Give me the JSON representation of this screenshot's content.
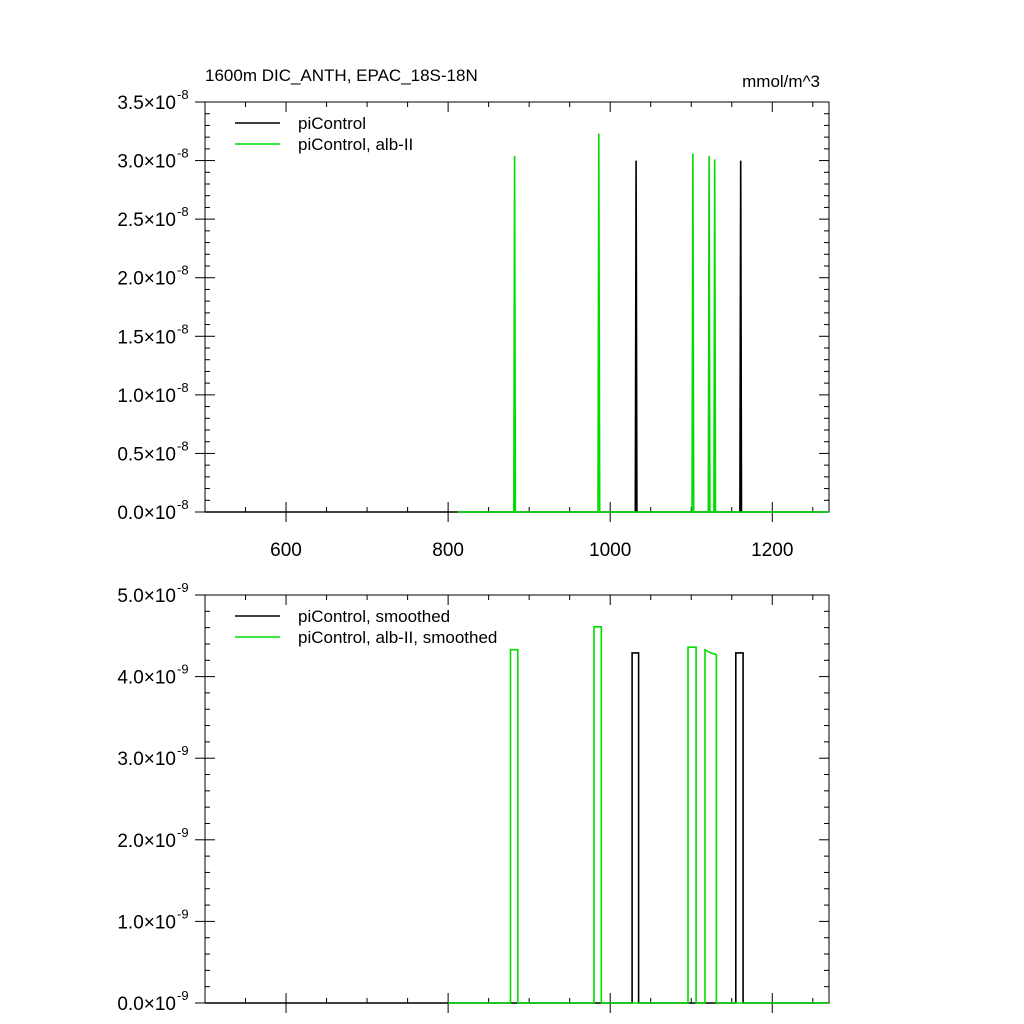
{
  "header": {
    "title": "1600m DIC_ANTH, EPAC_18S-18N",
    "units": "mmol/m^3"
  },
  "colors": {
    "piControl": "#000000",
    "alb": "#00dd00"
  },
  "chart_data": [
    {
      "type": "line",
      "title": "1600m DIC_ANTH, EPAC_18S-18N",
      "units": "mmol/m^3",
      "xlim": [
        500,
        1270
      ],
      "ylim": [
        0,
        3.5e-08
      ],
      "xticks": [
        600,
        800,
        1000,
        1200
      ],
      "xtick_labels": [
        "600",
        "800",
        "1000",
        "1200"
      ],
      "yticks": [
        0,
        5e-09,
        1e-08,
        1.5e-08,
        2e-08,
        2.5e-08,
        3e-08,
        3.5e-08
      ],
      "ytick_labels": [
        {
          "mant": "0.0×10",
          "exp": "-8"
        },
        {
          "mant": "0.5×10",
          "exp": "-8"
        },
        {
          "mant": "1.0×10",
          "exp": "-8"
        },
        {
          "mant": "1.5×10",
          "exp": "-8"
        },
        {
          "mant": "2.0×10",
          "exp": "-8"
        },
        {
          "mant": "2.5×10",
          "exp": "-8"
        },
        {
          "mant": "3.0×10",
          "exp": "-8"
        },
        {
          "mant": "3.5×10",
          "exp": "-8"
        }
      ],
      "legend": "top-left",
      "series": [
        {
          "name": "piControl",
          "color": "#000000",
          "x": [
            500,
            1031,
            1032,
            1033,
            1160,
            1161,
            1162,
            1270
          ],
          "y": [
            0,
            0,
            3e-08,
            0,
            0,
            3e-08,
            0,
            0
          ]
        },
        {
          "name": "piControl, alb-II",
          "color": "#00dd00",
          "x": [
            812,
            881,
            882,
            883,
            985,
            986,
            987,
            1101,
            1102,
            1103,
            1121,
            1122,
            1123,
            1128,
            1129,
            1130,
            1270
          ],
          "y": [
            0,
            0,
            3.04e-08,
            0,
            0,
            3.23e-08,
            0,
            0,
            3.06e-08,
            0,
            0,
            3.04e-08,
            0,
            0,
            3.01e-08,
            0,
            0
          ]
        }
      ]
    },
    {
      "type": "line",
      "xlim": [
        500,
        1270
      ],
      "ylim": [
        0,
        5e-09
      ],
      "xticks": [
        600,
        800,
        1000,
        1200
      ],
      "xtick_labels": [],
      "yticks": [
        0,
        1e-09,
        2e-09,
        3e-09,
        4e-09,
        5e-09
      ],
      "ytick_labels": [
        {
          "mant": "0.0×10",
          "exp": "-9"
        },
        {
          "mant": "1.0×10",
          "exp": "-9"
        },
        {
          "mant": "2.0×10",
          "exp": "-9"
        },
        {
          "mant": "3.0×10",
          "exp": "-9"
        },
        {
          "mant": "4.0×10",
          "exp": "-9"
        },
        {
          "mant": "5.0×10",
          "exp": "-9"
        }
      ],
      "legend": "top-left",
      "series": [
        {
          "name": "piControl, smoothed",
          "color": "#000000",
          "x": [
            500,
            1027,
            1027,
            1035,
            1035,
            1155,
            1155,
            1164,
            1164,
            1270
          ],
          "y": [
            0,
            0,
            4.29e-09,
            4.29e-09,
            0,
            0,
            4.29e-09,
            4.29e-09,
            0,
            0
          ]
        },
        {
          "name": "piControl, alb-II, smoothed",
          "color": "#00dd00",
          "x": [
            800,
            877,
            877,
            886,
            886,
            980,
            980,
            989,
            989,
            1096,
            1096,
            1106,
            1106,
            1117,
            1117,
            1124,
            1124,
            1131,
            1131,
            1270
          ],
          "y": [
            0,
            0,
            4.33e-09,
            4.33e-09,
            0,
            0,
            4.61e-09,
            4.61e-09,
            0,
            0,
            4.36e-09,
            4.36e-09,
            0,
            0,
            4.33e-09,
            4.29e-09,
            4.29e-09,
            4.27e-09,
            0,
            0
          ]
        }
      ]
    }
  ]
}
